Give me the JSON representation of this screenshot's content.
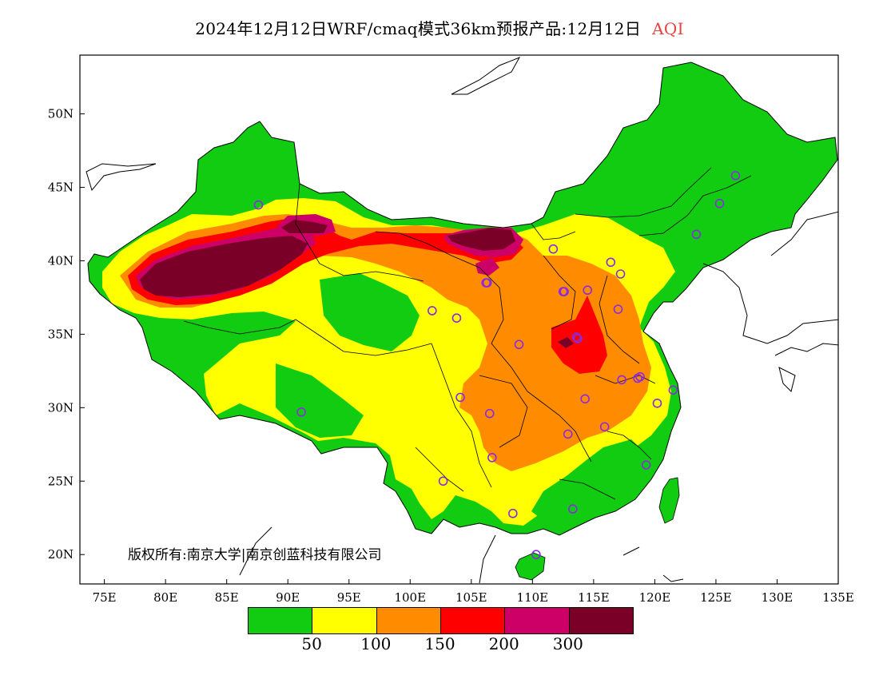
{
  "title": {
    "text": "2024年12月12日WRF/cmaq模式36km预报产品:12月12日",
    "variable": "AQI",
    "variable_color": "#e8413e"
  },
  "copyright": "版权所有:南京大学|南京创蓝科技有限公司",
  "axes": {
    "x_ticks": [
      "75E",
      "80E",
      "85E",
      "90E",
      "95E",
      "100E",
      "105E",
      "110E",
      "115E",
      "120E",
      "125E",
      "130E",
      "135E"
    ],
    "y_ticks": [
      "20N",
      "25N",
      "30N",
      "35N",
      "40N",
      "45N",
      "50N"
    ],
    "lon_range": [
      73,
      135
    ],
    "lat_range": [
      18,
      54
    ]
  },
  "legend": {
    "colors": [
      "#11cc11",
      "#ffff00",
      "#ff8c00",
      "#ff0000",
      "#cc0066",
      "#7a0028"
    ],
    "labels": [
      "50",
      "100",
      "150",
      "200",
      "300"
    ]
  },
  "stations": [
    [
      87.6,
      43.8
    ],
    [
      91.1,
      29.7
    ],
    [
      101.8,
      36.6
    ],
    [
      103.8,
      36.1
    ],
    [
      106.3,
      38.5
    ],
    [
      111.7,
      40.8
    ],
    [
      116.4,
      39.9
    ],
    [
      117.2,
      39.1
    ],
    [
      114.5,
      38.0
    ],
    [
      112.6,
      37.9
    ],
    [
      117.0,
      36.7
    ],
    [
      113.6,
      34.8
    ],
    [
      108.9,
      34.3
    ],
    [
      117.3,
      31.9
    ],
    [
      118.8,
      32.1
    ],
    [
      121.5,
      31.2
    ],
    [
      120.2,
      30.3
    ],
    [
      114.3,
      30.6
    ],
    [
      112.9,
      28.2
    ],
    [
      115.9,
      28.7
    ],
    [
      119.3,
      26.1
    ],
    [
      113.3,
      23.1
    ],
    [
      108.4,
      22.8
    ],
    [
      110.3,
      20.0
    ],
    [
      102.7,
      25.0
    ],
    [
      106.7,
      26.6
    ],
    [
      106.5,
      29.6
    ],
    [
      104.1,
      30.7
    ],
    [
      123.4,
      41.8
    ],
    [
      125.3,
      43.9
    ],
    [
      126.6,
      45.8
    ],
    [
      112.5,
      37.9
    ],
    [
      106.2,
      38.5
    ],
    [
      118.6,
      32.0
    ],
    [
      113.7,
      34.7
    ]
  ]
}
